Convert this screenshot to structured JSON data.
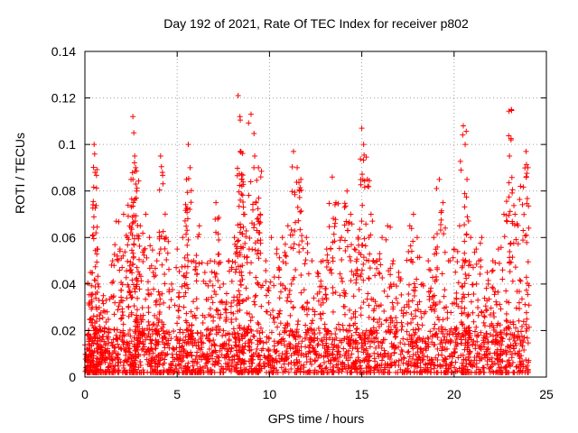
{
  "chart_data": {
    "type": "scatter",
    "title": "Day 192 of 2021, Rate Of TEC Index for receiver p802",
    "xlabel": "GPS time / hours",
    "ylabel": "ROTI / TECUs",
    "xlim": [
      0,
      25
    ],
    "ylim": [
      0,
      0.14
    ],
    "xticks": [
      0,
      5,
      10,
      15,
      20,
      25
    ],
    "xtick_labels": [
      "0",
      "5",
      "10",
      "15",
      "20",
      "25"
    ],
    "yticks": [
      0,
      0.02,
      0.04,
      0.06,
      0.08,
      0.1,
      0.12,
      0.14
    ],
    "ytick_labels": [
      "0",
      "0.02",
      "0.04",
      "0.06",
      "0.08",
      "0.1",
      "0.12",
      "0.14"
    ],
    "grid": true,
    "marker": "+",
    "series": [
      {
        "name": "ROTI",
        "color": "#ff0000",
        "points": [
          [
            0.1,
            0.012
          ],
          [
            0.2,
            0.02
          ],
          [
            0.3,
            0.045
          ],
          [
            0.4,
            0.03
          ],
          [
            0.5,
            0.1
          ],
          [
            0.55,
            0.088
          ],
          [
            0.6,
            0.062
          ],
          [
            0.7,
            0.04
          ],
          [
            0.8,
            0.025
          ],
          [
            1.0,
            0.035
          ],
          [
            1.2,
            0.028
          ],
          [
            1.5,
            0.05
          ],
          [
            1.7,
            0.067
          ],
          [
            1.9,
            0.055
          ],
          [
            2.1,
            0.07
          ],
          [
            2.3,
            0.06
          ],
          [
            2.5,
            0.085
          ],
          [
            2.6,
            0.112
          ],
          [
            2.65,
            0.105
          ],
          [
            2.7,
            0.095
          ],
          [
            2.75,
            0.09
          ],
          [
            2.8,
            0.08
          ],
          [
            3.0,
            0.065
          ],
          [
            3.3,
            0.07
          ],
          [
            3.5,
            0.06
          ],
          [
            3.7,
            0.045
          ],
          [
            3.9,
            0.05
          ],
          [
            4.1,
            0.095
          ],
          [
            4.2,
            0.088
          ],
          [
            4.4,
            0.06
          ],
          [
            4.7,
            0.04
          ],
          [
            5.0,
            0.055
          ],
          [
            5.3,
            0.06
          ],
          [
            5.5,
            0.085
          ],
          [
            5.6,
            0.1
          ],
          [
            5.7,
            0.09
          ],
          [
            5.9,
            0.05
          ],
          [
            6.2,
            0.065
          ],
          [
            6.5,
            0.045
          ],
          [
            6.8,
            0.05
          ],
          [
            7.1,
            0.075
          ],
          [
            7.2,
            0.068
          ],
          [
            7.5,
            0.04
          ],
          [
            7.8,
            0.05
          ],
          [
            8.1,
            0.06
          ],
          [
            8.3,
            0.121
          ],
          [
            8.4,
            0.112
          ],
          [
            8.45,
            0.097
          ],
          [
            8.5,
            0.085
          ],
          [
            8.6,
            0.07
          ],
          [
            8.9,
            0.055
          ],
          [
            9.0,
            0.113
          ],
          [
            9.2,
            0.095
          ],
          [
            9.4,
            0.09
          ],
          [
            9.5,
            0.07
          ],
          [
            9.8,
            0.05
          ],
          [
            10.1,
            0.06
          ],
          [
            10.4,
            0.055
          ],
          [
            10.7,
            0.06
          ],
          [
            11.0,
            0.065
          ],
          [
            11.3,
            0.097
          ],
          [
            11.5,
            0.09
          ],
          [
            11.7,
            0.085
          ],
          [
            12.0,
            0.06
          ],
          [
            12.3,
            0.05
          ],
          [
            12.6,
            0.045
          ],
          [
            12.9,
            0.05
          ],
          [
            13.1,
            0.055
          ],
          [
            13.4,
            0.086
          ],
          [
            13.6,
            0.075
          ],
          [
            13.9,
            0.06
          ],
          [
            14.2,
            0.08
          ],
          [
            14.4,
            0.07
          ],
          [
            14.6,
            0.055
          ],
          [
            14.8,
            0.06
          ],
          [
            15.0,
            0.107
          ],
          [
            15.1,
            0.1
          ],
          [
            15.3,
            0.085
          ],
          [
            15.5,
            0.07
          ],
          [
            15.8,
            0.05
          ],
          [
            16.1,
            0.06
          ],
          [
            16.4,
            0.065
          ],
          [
            16.7,
            0.05
          ],
          [
            17.0,
            0.045
          ],
          [
            17.3,
            0.03
          ],
          [
            17.6,
            0.065
          ],
          [
            17.8,
            0.07
          ],
          [
            18.0,
            0.06
          ],
          [
            18.3,
            0.04
          ],
          [
            18.6,
            0.05
          ],
          [
            18.9,
            0.06
          ],
          [
            19.2,
            0.085
          ],
          [
            19.4,
            0.075
          ],
          [
            19.7,
            0.05
          ],
          [
            20.0,
            0.055
          ],
          [
            20.3,
            0.065
          ],
          [
            20.5,
            0.108
          ],
          [
            20.6,
            0.1
          ],
          [
            20.7,
            0.085
          ],
          [
            20.9,
            0.06
          ],
          [
            21.2,
            0.055
          ],
          [
            21.5,
            0.06
          ],
          [
            21.8,
            0.045
          ],
          [
            22.1,
            0.05
          ],
          [
            22.4,
            0.055
          ],
          [
            22.7,
            0.07
          ],
          [
            23.0,
            0.095
          ],
          [
            23.1,
            0.115
          ],
          [
            23.3,
            0.07
          ],
          [
            23.6,
            0.082
          ],
          [
            23.9,
            0.097
          ],
          [
            24.0,
            0.09
          ]
        ]
      }
    ]
  }
}
